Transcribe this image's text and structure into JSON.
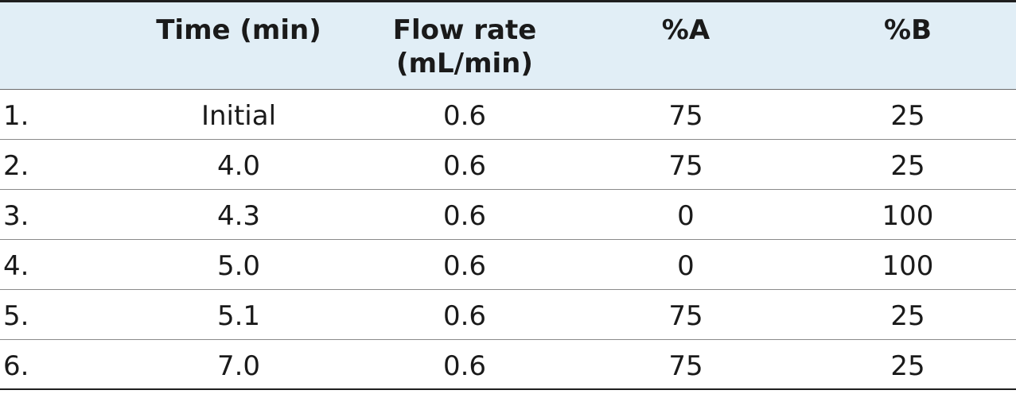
{
  "table": {
    "headers": [
      {
        "key": "index",
        "label": ""
      },
      {
        "key": "time",
        "label": "Time (min)"
      },
      {
        "key": "flow",
        "label": "Flow rate\n(mL/min)"
      },
      {
        "key": "pct_a",
        "label": "%A"
      },
      {
        "key": "pct_b",
        "label": "%B"
      }
    ],
    "header_labels": {
      "time": "Time (min)",
      "flow_line1": "Flow rate",
      "flow_line2": "(mL/min)",
      "pct_a": "%A",
      "pct_b": "%B"
    },
    "rows": [
      {
        "index": "1.",
        "time": "Initial",
        "flow": "0.6",
        "pct_a": "75",
        "pct_b": "25"
      },
      {
        "index": "2.",
        "time": "4.0",
        "flow": "0.6",
        "pct_a": "75",
        "pct_b": "25"
      },
      {
        "index": "3.",
        "time": "4.3",
        "flow": "0.6",
        "pct_a": "0",
        "pct_b": "100"
      },
      {
        "index": "4.",
        "time": "5.0",
        "flow": "0.6",
        "pct_a": "0",
        "pct_b": "100"
      },
      {
        "index": "5.",
        "time": "5.1",
        "flow": "0.6",
        "pct_a": "75",
        "pct_b": "25"
      },
      {
        "index": "6.",
        "time": "7.0",
        "flow": "0.6",
        "pct_a": "75",
        "pct_b": "25"
      }
    ]
  },
  "colors": {
    "header_background": "#e1eef6",
    "text": "#1a1a1a",
    "rule": "#1f1f1f"
  }
}
